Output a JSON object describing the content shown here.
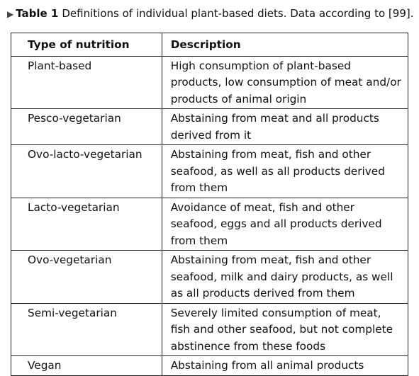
{
  "caption": {
    "label": "Table 1",
    "text": "Definitions of individual plant-based diets. Data according to [99]."
  },
  "table": {
    "headers": [
      "Type of nutrition",
      "Description"
    ],
    "rows": [
      {
        "type": "Plant-based",
        "description": "High consumption of plant-based products, low consumption of meat and/or products of animal origin"
      },
      {
        "type": "Pesco-vegetarian",
        "description": "Abstaining from meat and all products derived from it"
      },
      {
        "type": "Ovo-lacto-vegetarian",
        "description": "Abstaining from meat, fish and other seafood, as well as all products derived from them"
      },
      {
        "type": "Lacto-vegetarian",
        "description": "Avoidance of meat, fish and other seafood, eggs and all products derived from them"
      },
      {
        "type": "Ovo-vegetarian",
        "description": "Abstaining from meat, fish and other seafood, milk and dairy products, as well as all products derived from them"
      },
      {
        "type": "Semi-vegetarian",
        "description": "Severely limited consumption of meat, fish and other seafood, but not complete abstinence from these foods"
      },
      {
        "type": "Vegan",
        "description": "Abstaining from all animal products"
      }
    ]
  }
}
